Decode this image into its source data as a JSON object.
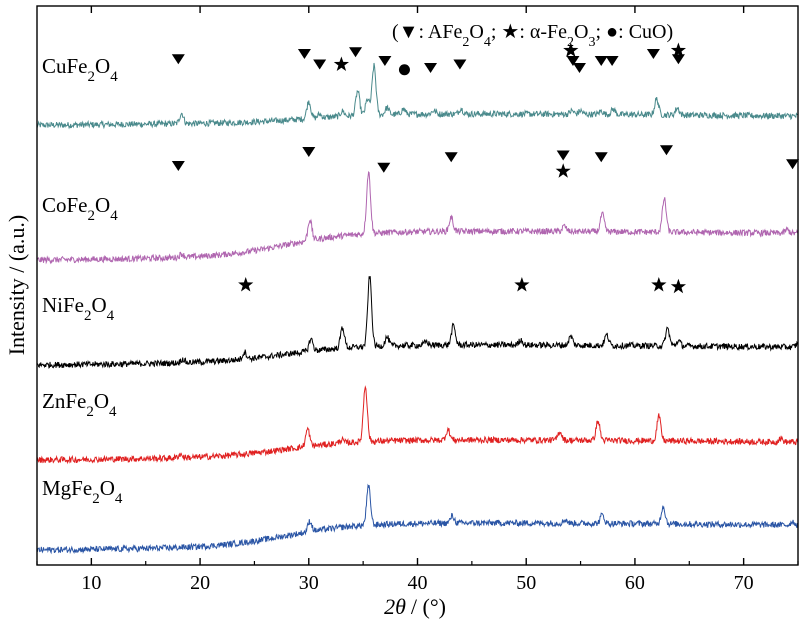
{
  "chart_data": {
    "type": "line",
    "xlabel_symbol": "2θ",
    "xlabel_unit": "/ (°)",
    "ylabel": "Intensity / (a.u.)",
    "xlim": [
      5,
      75
    ],
    "xticks": [
      "10",
      "20",
      "30",
      "40",
      "50",
      "60",
      "70"
    ],
    "legend": {
      "items": [
        {
          "symbol": "▼",
          "text": "AFe₂O₄"
        },
        {
          "symbol": "★",
          "text": "α-Fe₂O₃"
        },
        {
          "symbol": "●",
          "text": "CuO"
        }
      ]
    },
    "series": [
      {
        "name": "CuFe₂O₄",
        "color": "#4a8a8c",
        "baseline": 0.17,
        "background_hump": {
          "center": 30,
          "width": 12,
          "height": 0.05
        },
        "peaks": [
          [
            18.3,
            0.06
          ],
          [
            30.0,
            0.1
          ],
          [
            31.0,
            0.02
          ],
          [
            33.1,
            0.03
          ],
          [
            34.5,
            0.14
          ],
          [
            35.4,
            0.09
          ],
          [
            36.0,
            0.28
          ],
          [
            37.2,
            0.04
          ],
          [
            38.7,
            0.03
          ],
          [
            41.5,
            0.02
          ],
          [
            44.0,
            0.03
          ],
          [
            54.2,
            0.02
          ],
          [
            55.0,
            0.02
          ],
          [
            56.9,
            0.02
          ],
          [
            58.0,
            0.03
          ],
          [
            62.0,
            0.09
          ],
          [
            63.9,
            0.04
          ]
        ],
        "markers": [
          {
            "type": "tri",
            "x": 18.0,
            "y": 0.33
          },
          {
            "type": "tri",
            "x": 29.6,
            "y": 0.36
          },
          {
            "type": "tri",
            "x": 31.0,
            "y": 0.3
          },
          {
            "type": "star",
            "x": 33.0,
            "y": 0.3
          },
          {
            "type": "tri",
            "x": 34.3,
            "y": 0.37
          },
          {
            "type": "tri",
            "x": 37.0,
            "y": 0.32
          },
          {
            "type": "dot",
            "x": 38.8,
            "y": 0.27
          },
          {
            "type": "tri",
            "x": 41.2,
            "y": 0.28
          },
          {
            "type": "tri",
            "x": 43.9,
            "y": 0.3
          },
          {
            "type": "star",
            "x": 54.1,
            "y": 0.38
          },
          {
            "type": "tri",
            "x": 54.3,
            "y": 0.32
          },
          {
            "type": "tri",
            "x": 54.9,
            "y": 0.28
          },
          {
            "type": "tri",
            "x": 56.9,
            "y": 0.32
          },
          {
            "type": "tri",
            "x": 57.9,
            "y": 0.32
          },
          {
            "type": "tri",
            "x": 61.7,
            "y": 0.36
          },
          {
            "type": "star",
            "x": 64.0,
            "y": 0.38
          },
          {
            "type": "tri",
            "x": 64.0,
            "y": 0.33
          }
        ]
      },
      {
        "name": "CoFe₂O₄",
        "color": "#b066b0",
        "baseline": 0.0,
        "background_hump": {
          "center": 28,
          "width": 13,
          "height": 0.15
        },
        "peaks": [
          [
            18.3,
            0.02
          ],
          [
            30.1,
            0.12
          ],
          [
            35.5,
            0.35
          ],
          [
            43.1,
            0.08
          ],
          [
            53.5,
            0.03
          ],
          [
            57.0,
            0.1
          ],
          [
            62.7,
            0.19
          ],
          [
            74.0,
            0.02
          ]
        ],
        "markers": [
          {
            "type": "tri",
            "x": 18.0,
            "y": 0.32
          },
          {
            "type": "tri",
            "x": 30.0,
            "y": 0.4
          },
          {
            "type": "tri",
            "x": 36.9,
            "y": 0.31
          },
          {
            "type": "tri",
            "x": 43.1,
            "y": 0.37
          },
          {
            "type": "tri",
            "x": 53.4,
            "y": 0.38
          },
          {
            "type": "star",
            "x": 53.4,
            "y": 0.29
          },
          {
            "type": "tri",
            "x": 56.9,
            "y": 0.37
          },
          {
            "type": "tri",
            "x": 62.9,
            "y": 0.41
          },
          {
            "type": "tri",
            "x": 74.5,
            "y": 0.33
          }
        ]
      },
      {
        "name": "NiFe₂O₄",
        "color": "#000000",
        "baseline": 0.0,
        "background_hump": {
          "center": 28,
          "width": 13,
          "height": 0.1
        },
        "peaks": [
          [
            18.4,
            0.02
          ],
          [
            24.1,
            0.04
          ],
          [
            30.2,
            0.07
          ],
          [
            33.1,
            0.12
          ],
          [
            35.6,
            0.4
          ],
          [
            37.2,
            0.05
          ],
          [
            40.8,
            0.02
          ],
          [
            43.3,
            0.11
          ],
          [
            49.5,
            0.03
          ],
          [
            54.1,
            0.05
          ],
          [
            57.4,
            0.06
          ],
          [
            63.0,
            0.1
          ],
          [
            64.0,
            0.03
          ],
          [
            75.0,
            0.02
          ]
        ],
        "markers": [
          {
            "type": "star",
            "x": 24.2,
            "y": 0.24
          },
          {
            "type": "star",
            "x": 49.6,
            "y": 0.24
          },
          {
            "type": "star",
            "x": 62.2,
            "y": 0.24
          },
          {
            "type": "star",
            "x": 64.0,
            "y": 0.23
          }
        ]
      },
      {
        "name": "ZnFe₂O₄",
        "color": "#e02020",
        "baseline": 0.0,
        "background_hump": {
          "center": 28,
          "width": 13,
          "height": 0.1
        },
        "peaks": [
          [
            18.2,
            0.02
          ],
          [
            29.9,
            0.1
          ],
          [
            33.0,
            0.02
          ],
          [
            35.2,
            0.32
          ],
          [
            42.8,
            0.06
          ],
          [
            53.1,
            0.05
          ],
          [
            56.6,
            0.11
          ],
          [
            62.2,
            0.14
          ],
          [
            73.4,
            0.02
          ]
        ],
        "markers": []
      },
      {
        "name": "MgFe₂O₄",
        "color": "#2a55a5",
        "baseline": 0.0,
        "background_hump": {
          "center": 28,
          "width": 13,
          "height": 0.14
        },
        "peaks": [
          [
            30.1,
            0.06
          ],
          [
            35.5,
            0.22
          ],
          [
            43.2,
            0.04
          ],
          [
            53.6,
            0.02
          ],
          [
            57.0,
            0.05
          ],
          [
            62.6,
            0.1
          ],
          [
            74.5,
            0.02
          ]
        ],
        "markers": []
      }
    ]
  }
}
